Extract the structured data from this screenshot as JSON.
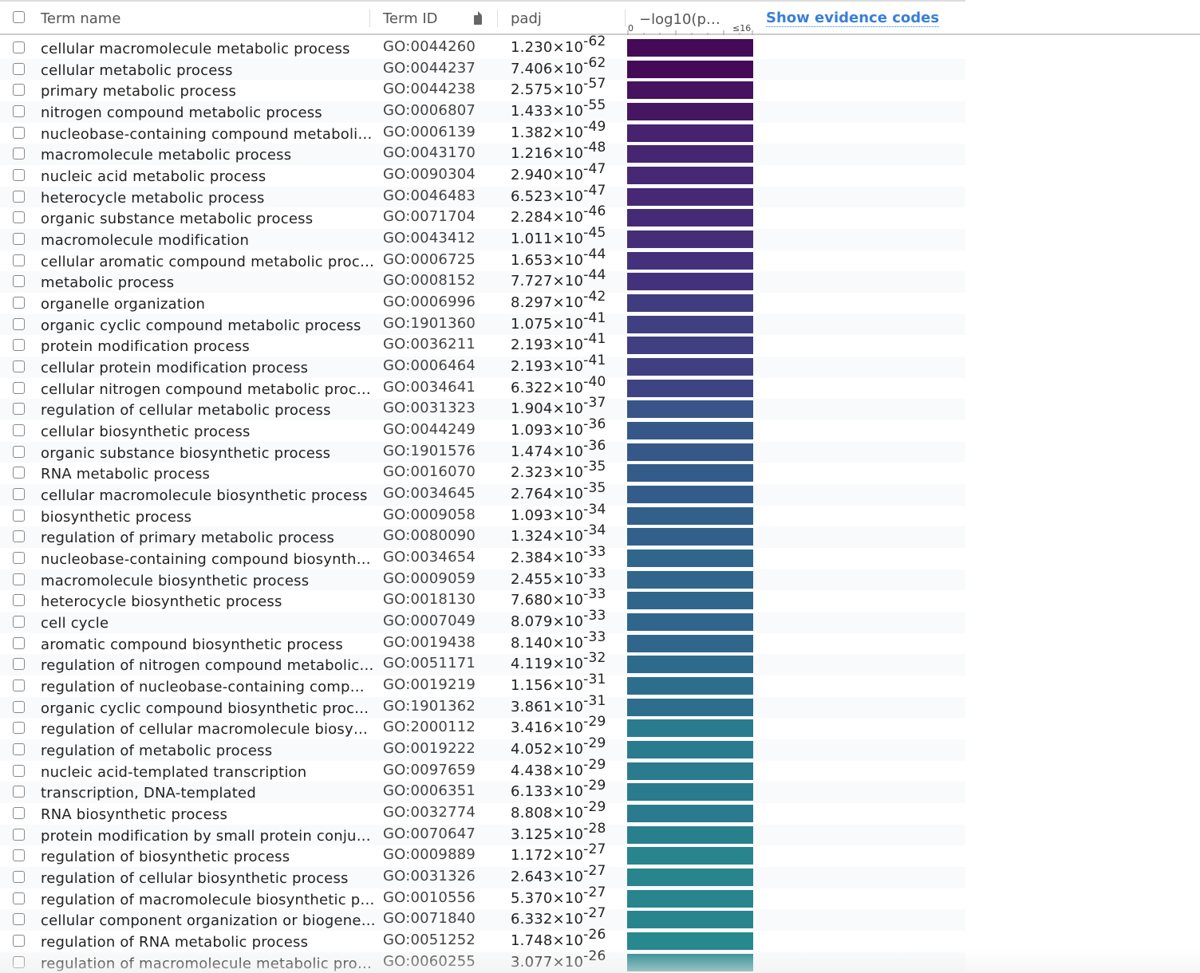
{
  "header": {
    "term_name": "Term name",
    "term_id": "Term ID",
    "padj": "padj",
    "neglog": "−log10(p…",
    "scale_min": "0",
    "scale_max": "≤16",
    "evidence_link": "Show evidence codes"
  },
  "rows": [
    {
      "term": "cellular macromolecule metabolic process",
      "id": "GO:0044260",
      "padj": "1.230×10",
      "exp": "-62",
      "color": "#440a57"
    },
    {
      "term": "cellular metabolic process",
      "id": "GO:0044237",
      "padj": "7.406×10",
      "exp": "-62",
      "color": "#440a57"
    },
    {
      "term": "primary metabolic process",
      "id": "GO:0044238",
      "padj": "2.575×10",
      "exp": "-57",
      "color": "#45135f"
    },
    {
      "term": "nitrogen compound metabolic process",
      "id": "GO:0006807",
      "padj": "1.433×10",
      "exp": "-55",
      "color": "#461663"
    },
    {
      "term": "nucleobase-containing compound metaboli…",
      "id": "GO:0006139",
      "padj": "1.382×10",
      "exp": "-49",
      "color": "#46226f"
    },
    {
      "term": "macromolecule metabolic process",
      "id": "GO:0043170",
      "padj": "1.216×10",
      "exp": "-48",
      "color": "#462572"
    },
    {
      "term": "nucleic acid metabolic process",
      "id": "GO:0090304",
      "padj": "2.940×10",
      "exp": "-47",
      "color": "#462874"
    },
    {
      "term": "heterocycle metabolic process",
      "id": "GO:0046483",
      "padj": "6.523×10",
      "exp": "-47",
      "color": "#462874"
    },
    {
      "term": "organic substance metabolic process",
      "id": "GO:0071704",
      "padj": "2.284×10",
      "exp": "-46",
      "color": "#452b76"
    },
    {
      "term": "macromolecule modification",
      "id": "GO:0043412",
      "padj": "1.011×10",
      "exp": "-45",
      "color": "#452e78"
    },
    {
      "term": "cellular aromatic compound metabolic proc…",
      "id": "GO:0006725",
      "padj": "1.653×10",
      "exp": "-44",
      "color": "#43327b"
    },
    {
      "term": "metabolic process",
      "id": "GO:0008152",
      "padj": "7.727×10",
      "exp": "-44",
      "color": "#43327b"
    },
    {
      "term": "organelle organization",
      "id": "GO:0006996",
      "padj": "8.297×10",
      "exp": "-42",
      "color": "#403c80"
    },
    {
      "term": "organic cyclic compound metabolic process",
      "id": "GO:1901360",
      "padj": "1.075×10",
      "exp": "-41",
      "color": "#3f3f82"
    },
    {
      "term": "protein modification process",
      "id": "GO:0036211",
      "padj": "2.193×10",
      "exp": "-41",
      "color": "#3f3f82"
    },
    {
      "term": "cellular protein modification process",
      "id": "GO:0006464",
      "padj": "2.193×10",
      "exp": "-41",
      "color": "#3f3f82"
    },
    {
      "term": "cellular nitrogen compound metabolic proc…",
      "id": "GO:0034641",
      "padj": "6.322×10",
      "exp": "-40",
      "color": "#3d4383"
    },
    {
      "term": "regulation of cellular metabolic process",
      "id": "GO:0031323",
      "padj": "1.904×10",
      "exp": "-37",
      "color": "#385488"
    },
    {
      "term": "cellular biosynthetic process",
      "id": "GO:0044249",
      "padj": "1.093×10",
      "exp": "-36",
      "color": "#365889"
    },
    {
      "term": "organic substance biosynthetic process",
      "id": "GO:1901576",
      "padj": "1.474×10",
      "exp": "-36",
      "color": "#365889"
    },
    {
      "term": "RNA metabolic process",
      "id": "GO:0016070",
      "padj": "2.323×10",
      "exp": "-35",
      "color": "#345c8a"
    },
    {
      "term": "cellular macromolecule biosynthetic process",
      "id": "GO:0034645",
      "padj": "2.764×10",
      "exp": "-35",
      "color": "#345c8a"
    },
    {
      "term": "biosynthetic process",
      "id": "GO:0009058",
      "padj": "1.093×10",
      "exp": "-34",
      "color": "#32608b"
    },
    {
      "term": "regulation of primary metabolic process",
      "id": "GO:0080090",
      "padj": "1.324×10",
      "exp": "-34",
      "color": "#32608b"
    },
    {
      "term": "nucleobase-containing compound biosynth…",
      "id": "GO:0034654",
      "padj": "2.384×10",
      "exp": "-33",
      "color": "#30668c"
    },
    {
      "term": "macromolecule biosynthetic process",
      "id": "GO:0009059",
      "padj": "2.455×10",
      "exp": "-33",
      "color": "#30668c"
    },
    {
      "term": "heterocycle biosynthetic process",
      "id": "GO:0018130",
      "padj": "7.680×10",
      "exp": "-33",
      "color": "#30668c"
    },
    {
      "term": "cell cycle",
      "id": "GO:0007049",
      "padj": "8.079×10",
      "exp": "-33",
      "color": "#30668c"
    },
    {
      "term": "aromatic compound biosynthetic process",
      "id": "GO:0019438",
      "padj": "8.140×10",
      "exp": "-33",
      "color": "#30668c"
    },
    {
      "term": "regulation of nitrogen compound metabolic…",
      "id": "GO:0051171",
      "padj": "4.119×10",
      "exp": "-32",
      "color": "#2e6a8c"
    },
    {
      "term": "regulation of nucleobase-containing comp…",
      "id": "GO:0019219",
      "padj": "1.156×10",
      "exp": "-31",
      "color": "#2d6e8d"
    },
    {
      "term": "organic cyclic compound biosynthetic proc…",
      "id": "GO:1901362",
      "padj": "3.861×10",
      "exp": "-31",
      "color": "#2d6e8d"
    },
    {
      "term": "regulation of cellular macromolecule biosy…",
      "id": "GO:2000112",
      "padj": "3.416×10",
      "exp": "-29",
      "color": "#2a7b8d"
    },
    {
      "term": "regulation of metabolic process",
      "id": "GO:0019222",
      "padj": "4.052×10",
      "exp": "-29",
      "color": "#2a7b8d"
    },
    {
      "term": "nucleic acid-templated transcription",
      "id": "GO:0097659",
      "padj": "4.438×10",
      "exp": "-29",
      "color": "#2a7b8d"
    },
    {
      "term": "transcription, DNA-templated",
      "id": "GO:0006351",
      "padj": "6.133×10",
      "exp": "-29",
      "color": "#2a7b8d"
    },
    {
      "term": "RNA biosynthetic process",
      "id": "GO:0032774",
      "padj": "8.808×10",
      "exp": "-29",
      "color": "#2a7b8d"
    },
    {
      "term": "protein modification by small protein conju…",
      "id": "GO:0070647",
      "padj": "3.125×10",
      "exp": "-28",
      "color": "#29808d"
    },
    {
      "term": "regulation of biosynthetic process",
      "id": "GO:0009889",
      "padj": "1.172×10",
      "exp": "-27",
      "color": "#28848d"
    },
    {
      "term": "regulation of cellular biosynthetic process",
      "id": "GO:0031326",
      "padj": "2.643×10",
      "exp": "-27",
      "color": "#28848d"
    },
    {
      "term": "regulation of macromolecule biosynthetic p…",
      "id": "GO:0010556",
      "padj": "5.370×10",
      "exp": "-27",
      "color": "#28848d"
    },
    {
      "term": "cellular component organization or biogene…",
      "id": "GO:0071840",
      "padj": "6.332×10",
      "exp": "-27",
      "color": "#28848d"
    },
    {
      "term": "regulation of RNA metabolic process",
      "id": "GO:0051252",
      "padj": "1.748×10",
      "exp": "-26",
      "color": "#27888d"
    },
    {
      "term": "regulation of macromolecule metabolic pro…",
      "id": "GO:0060255",
      "padj": "3.077×10",
      "exp": "-26",
      "color": "#27888d"
    }
  ]
}
